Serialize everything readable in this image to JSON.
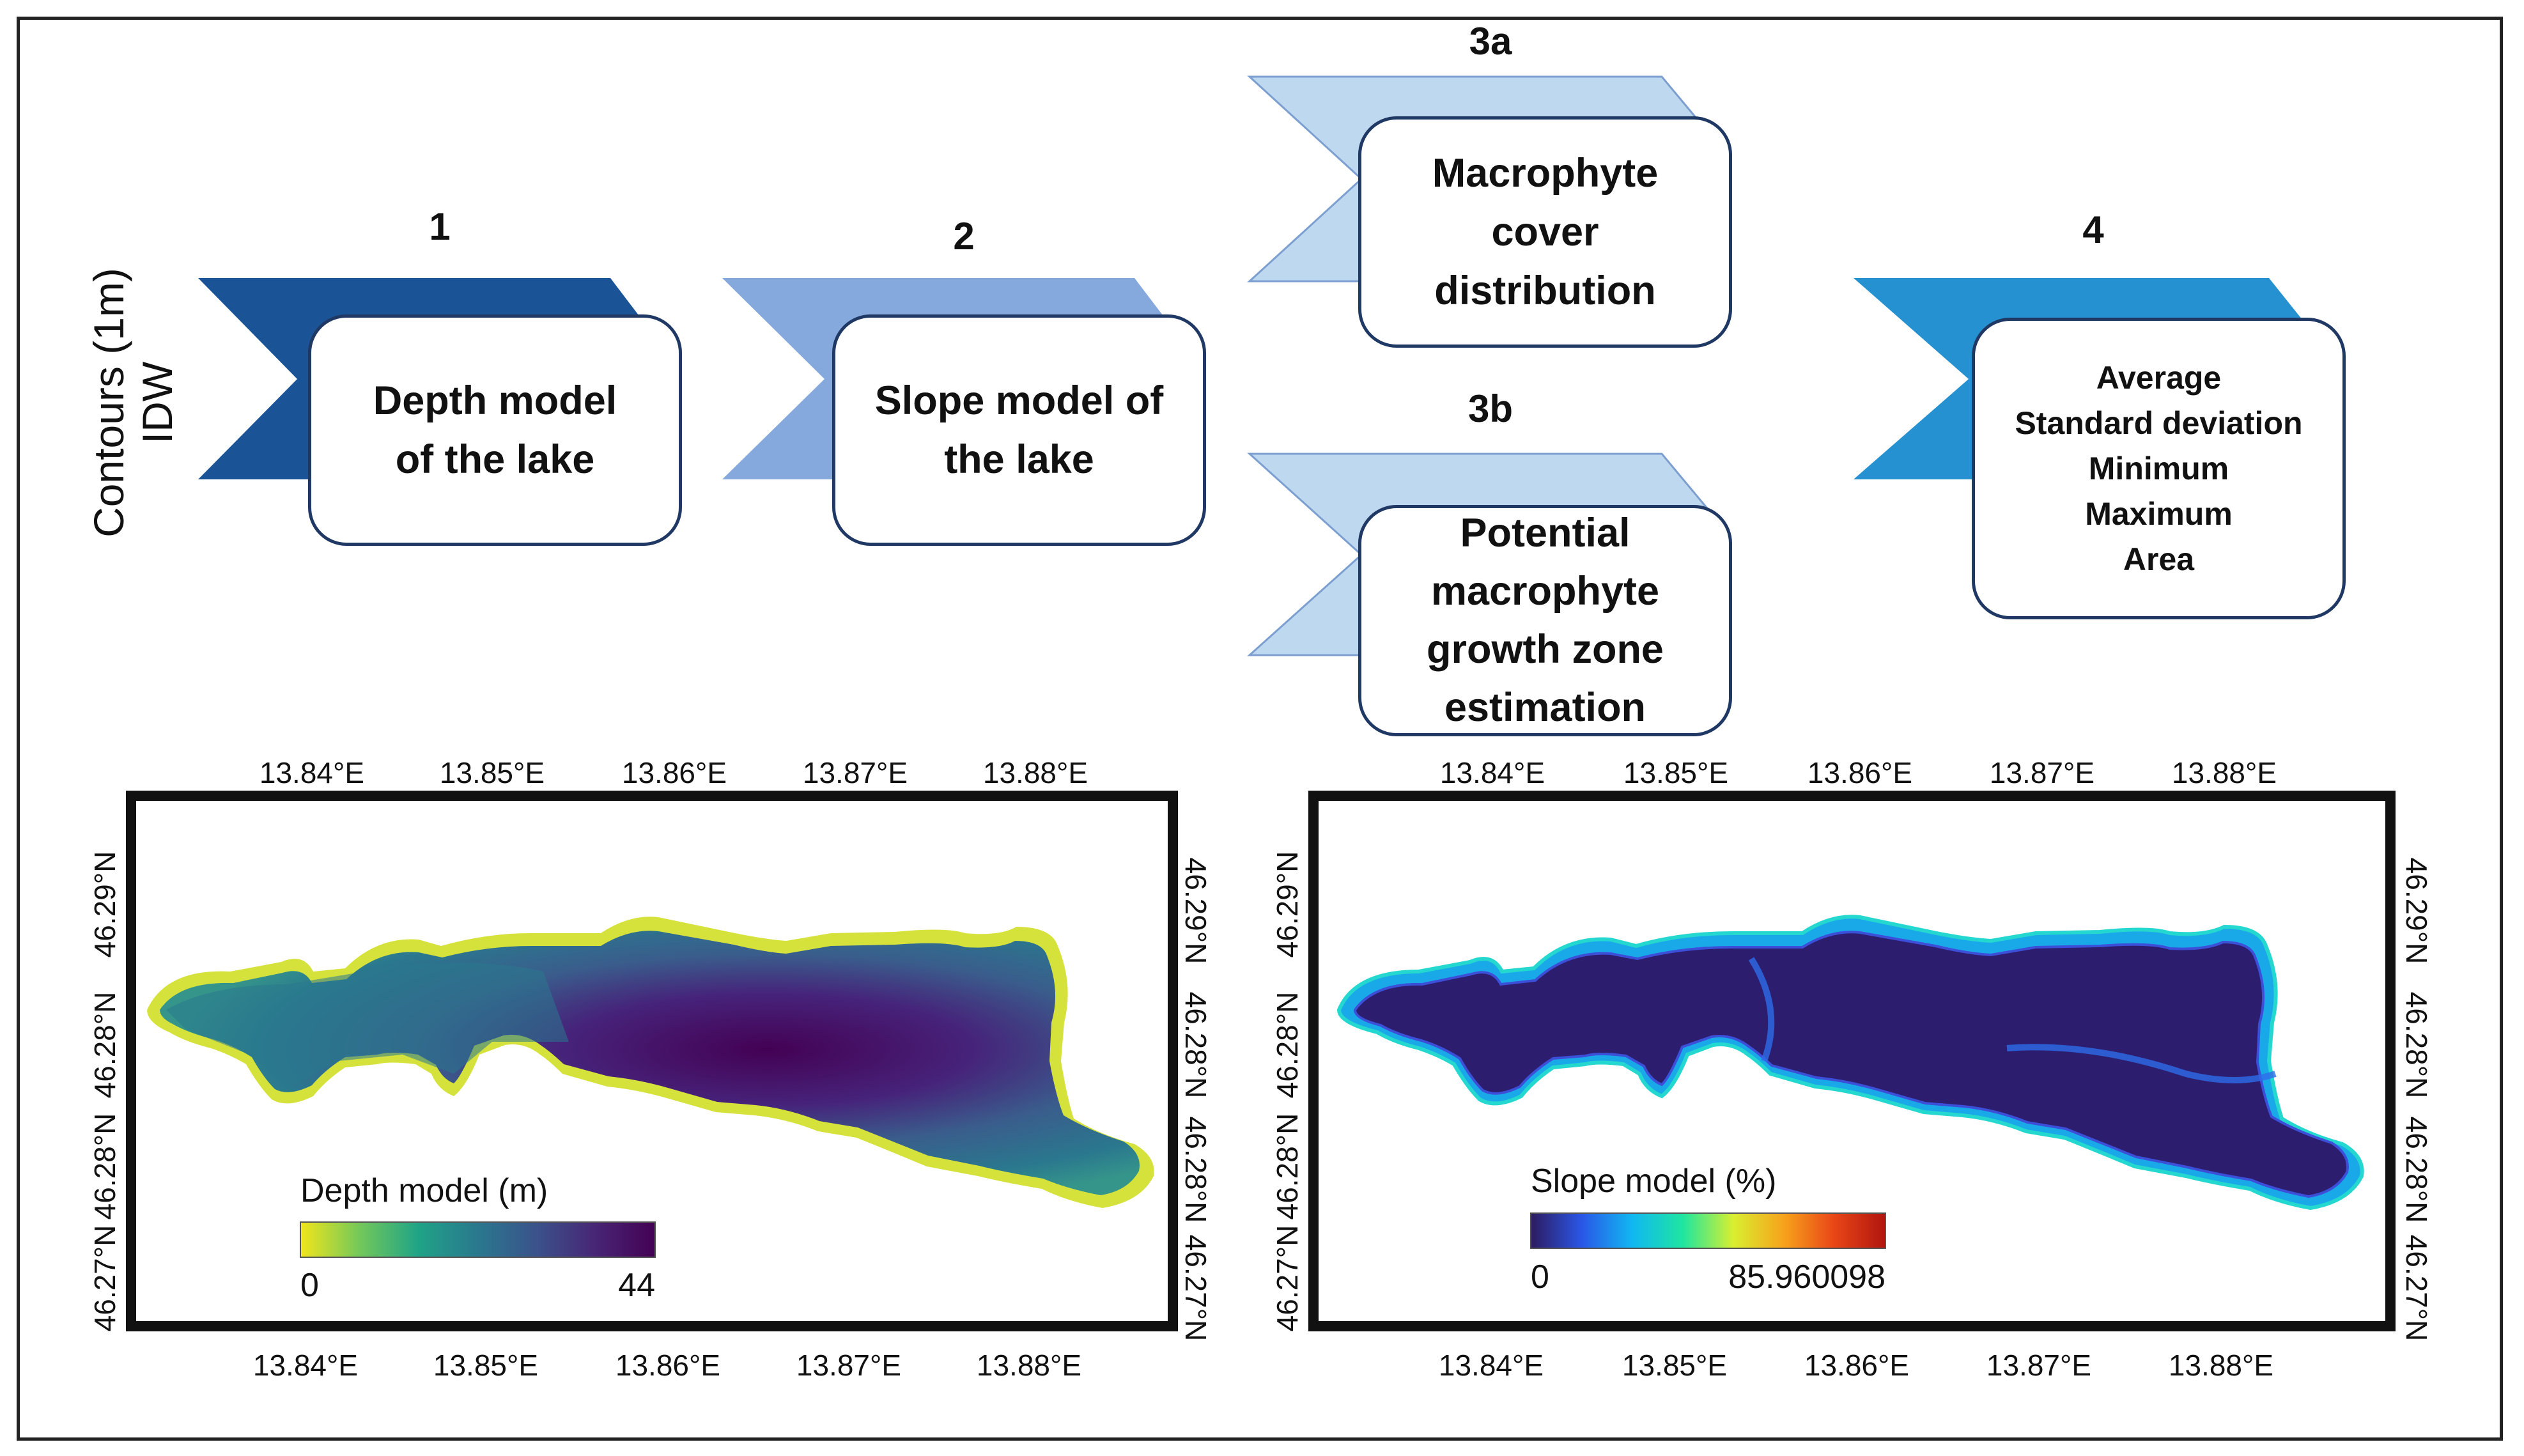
{
  "step1": {
    "number": "1",
    "lines": [
      "Depth model",
      "of the lake"
    ],
    "side_lines": [
      "Contours (1m)",
      "IDW"
    ],
    "color": "#1a5497"
  },
  "step2": {
    "number": "2",
    "lines": [
      "Slope model of",
      "the lake"
    ],
    "color": "#85a9dc"
  },
  "step3a": {
    "number": "3a",
    "lines": [
      "Macrophyte",
      "cover",
      "distribution"
    ],
    "color": "#bed8ef"
  },
  "step3b": {
    "number": "3b",
    "lines": [
      "Potential",
      "macrophyte",
      "growth zone",
      "estimation"
    ],
    "color": "#bed8ef"
  },
  "step4": {
    "number": "4",
    "lines": [
      "Average",
      "Standard deviation",
      "Minimum",
      "Maximum",
      "Area"
    ],
    "color": "#2691d0"
  },
  "lon_ticks": [
    "13.84°E",
    "13.85°E",
    "13.86°E",
    "13.87°E",
    "13.88°E"
  ],
  "lat_ticks_left": [
    "46.29°N",
    "46.28°N",
    "46.28°N",
    "46.27°N"
  ],
  "lat_ticks_right": [
    "46.29°N",
    "46.28°N",
    "46.28°N",
    "46.27°N"
  ],
  "depth_map": {
    "legend_title": "Depth model (m)",
    "min_label": "0",
    "max_label": "44",
    "ramp": [
      "#f2e61a",
      "#73c85a",
      "#20a387",
      "#2a788e",
      "#3b528b",
      "#482575",
      "#440154"
    ]
  },
  "slope_map": {
    "legend_title": "Slope model (%)",
    "min_label": "0",
    "max_label": "85.960098",
    "ramp": [
      "#2d1b5e",
      "#2a56e6",
      "#11b7f2",
      "#1ee6a0",
      "#d9ef30",
      "#f7a21b",
      "#e84517",
      "#b0150f"
    ]
  }
}
